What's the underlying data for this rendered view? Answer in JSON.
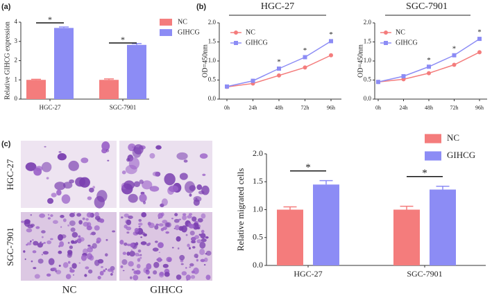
{
  "chart_data": [
    {
      "type": "bar",
      "panel_label": "(a)",
      "ylabel": "Relative GIHCG expression",
      "categories": [
        "HGC-27",
        "SGC-7901"
      ],
      "series": [
        {
          "name": "NC",
          "color": "#f47c7c",
          "values": [
            1.0,
            1.0
          ],
          "errors": [
            0.03,
            0.05
          ]
        },
        {
          "name": "GIHCG",
          "color": "#8c8cf5",
          "values": [
            3.7,
            2.82
          ],
          "errors": [
            0.05,
            0.07
          ]
        }
      ],
      "ylim": [
        0,
        4
      ],
      "yticks": [
        0,
        1,
        2,
        3,
        4
      ],
      "annotations": [
        "*",
        "*"
      ]
    },
    {
      "type": "line",
      "panel_label": "(b)",
      "title": "HGC-27",
      "ylabel": "OD=450nm",
      "categories": [
        "0h",
        "24h",
        "48h",
        "72h",
        "96h"
      ],
      "series": [
        {
          "name": "NC",
          "color": "#f47c7c",
          "marker": "circle",
          "values": [
            0.32,
            0.41,
            0.62,
            0.83,
            1.15
          ]
        },
        {
          "name": "GIHCG",
          "color": "#8c8cf5",
          "marker": "square",
          "values": [
            0.33,
            0.48,
            0.8,
            1.1,
            1.52
          ]
        }
      ],
      "ylim": [
        0,
        2
      ],
      "yticks": [
        {
          "value": 0,
          "label": "0.0"
        },
        0.5,
        {
          "value": 1,
          "label": "1.0"
        },
        1.5,
        {
          "value": 2,
          "label": "2.0"
        }
      ],
      "annotations": [
        "*",
        "*",
        "*"
      ]
    },
    {
      "type": "line",
      "title": "SGC-7901",
      "ylabel": "OD=450nm",
      "categories": [
        "0h",
        "24h",
        "48h",
        "72h",
        "96h"
      ],
      "series": [
        {
          "name": "NC",
          "color": "#f47c7c",
          "marker": "circle",
          "values": [
            0.45,
            0.52,
            0.68,
            0.9,
            1.23
          ]
        },
        {
          "name": "GIHCG",
          "color": "#8c8cf5",
          "marker": "square",
          "values": [
            0.45,
            0.6,
            0.85,
            1.15,
            1.58
          ]
        }
      ],
      "ylim": [
        0,
        2
      ],
      "yticks": [
        {
          "value": 0,
          "label": "0.0"
        },
        0.5,
        {
          "value": 1,
          "label": "1.0"
        },
        1.5,
        {
          "value": 2,
          "label": "2.0"
        }
      ],
      "annotations": [
        "*",
        "*",
        "*"
      ]
    },
    {
      "type": "bar",
      "ylabel": "Relative migrated cells",
      "categories": [
        "HGC-27",
        "SGC-7901"
      ],
      "series": [
        {
          "name": "NC",
          "color": "#f47c7c",
          "values": [
            1.0,
            1.0
          ],
          "errors": [
            0.05,
            0.06
          ]
        },
        {
          "name": "GIHCG",
          "color": "#8c8cf5",
          "values": [
            1.45,
            1.36
          ],
          "errors": [
            0.07,
            0.06
          ]
        }
      ],
      "ylim": [
        0,
        2
      ],
      "yticks": [
        {
          "value": 0,
          "label": "0.0"
        },
        0.5,
        {
          "value": 1,
          "label": "1.0"
        },
        1.5,
        {
          "value": 2,
          "label": "2.0"
        }
      ],
      "annotations": [
        "*",
        "*"
      ]
    }
  ],
  "images": {
    "panel_label": "(c)",
    "row_labels": [
      "HGC-27",
      "SGC-7901"
    ],
    "col_labels": [
      "NC",
      "GIHCG"
    ]
  }
}
